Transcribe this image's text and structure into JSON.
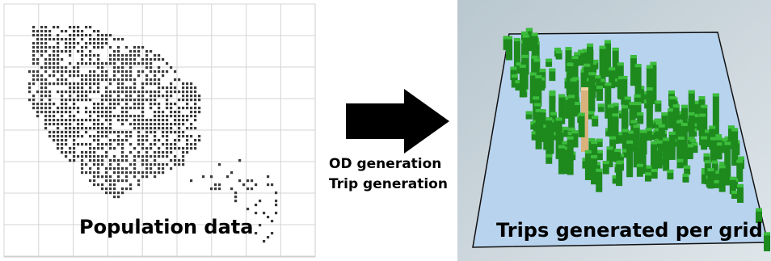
{
  "left_panel": {
    "label": "Population data"
  },
  "arrow": {
    "labels": [
      "OD generation",
      "Trip generation"
    ]
  },
  "right_panel": {
    "label": "Trips generated per grid"
  }
}
